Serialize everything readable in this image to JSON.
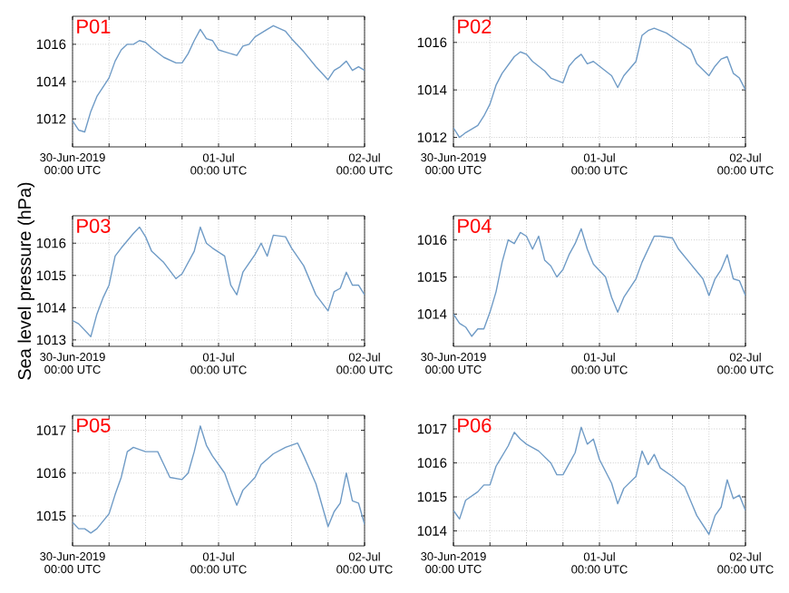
{
  "chart_data": [
    {
      "type": "line",
      "title": "P01",
      "color": "#6f9bc6",
      "grid": true,
      "xlim": [
        "2019-06-30T00:00",
        "2019-07-02T00:00"
      ],
      "ylim": [
        1010.5,
        1017.5
      ],
      "yticks": [
        1012,
        1014,
        1016
      ],
      "xticks": [
        {
          "value": "2019-06-30T00:00",
          "label": "30-Jun-2019\n00:00 UTC"
        },
        {
          "value": "2019-06-30T06:00",
          "label": null
        },
        {
          "value": "2019-06-30T12:00",
          "label": null
        },
        {
          "value": "2019-06-30T18:00",
          "label": null
        },
        {
          "value": "2019-07-01T00:00",
          "label": "01-Jul\n00:00 UTC"
        },
        {
          "value": "2019-07-01T06:00",
          "label": null
        },
        {
          "value": "2019-07-01T12:00",
          "label": null
        },
        {
          "value": "2019-07-01T18:00",
          "label": null
        },
        {
          "value": "2019-07-02T00:00",
          "label": "02-Jul\n00:00 UTC"
        }
      ],
      "x": [
        "2019-06-30T00:00",
        "2019-06-30T01:00",
        "2019-06-30T02:00",
        "2019-06-30T03:00",
        "2019-06-30T04:00",
        "2019-06-30T05:00",
        "2019-06-30T06:00",
        "2019-06-30T07:00",
        "2019-06-30T08:00",
        "2019-06-30T09:00",
        "2019-06-30T10:00",
        "2019-06-30T11:00",
        "2019-06-30T12:00",
        "2019-06-30T13:00",
        "2019-06-30T15:00",
        "2019-06-30T17:00",
        "2019-06-30T18:00",
        "2019-06-30T19:00",
        "2019-06-30T20:00",
        "2019-06-30T21:00",
        "2019-06-30T22:00",
        "2019-06-30T23:00",
        "2019-07-01T00:00",
        "2019-07-01T01:00",
        "2019-07-01T03:00",
        "2019-07-01T04:00",
        "2019-07-01T05:00",
        "2019-07-01T06:00",
        "2019-07-01T08:00",
        "2019-07-01T09:00",
        "2019-07-01T11:00",
        "2019-07-01T12:00",
        "2019-07-01T14:00",
        "2019-07-01T16:00",
        "2019-07-01T18:00",
        "2019-07-01T19:00",
        "2019-07-01T20:00",
        "2019-07-01T21:00",
        "2019-07-01T22:00",
        "2019-07-01T23:00",
        "2019-07-02T00:00"
      ],
      "values": [
        1011.9,
        1011.4,
        1011.3,
        1012.4,
        1013.2,
        1013.7,
        1014.2,
        1015.1,
        1015.7,
        1016.0,
        1016.0,
        1016.2,
        1016.1,
        1015.8,
        1015.3,
        1015.0,
        1015.0,
        1015.5,
        1016.2,
        1016.8,
        1016.3,
        1016.2,
        1015.7,
        1015.6,
        1015.4,
        1015.9,
        1016.0,
        1016.4,
        1016.8,
        1017.0,
        1016.7,
        1016.3,
        1015.6,
        1014.8,
        1014.1,
        1014.6,
        1014.8,
        1015.1,
        1014.6,
        1014.8,
        1014.6
      ]
    },
    {
      "type": "line",
      "title": "P02",
      "color": "#6f9bc6",
      "grid": true,
      "xlim": [
        "2019-06-30T00:00",
        "2019-07-02T00:00"
      ],
      "ylim": [
        1011.6,
        1017.1
      ],
      "yticks": [
        1012,
        1014,
        1016
      ],
      "xticks": [
        {
          "value": "2019-06-30T00:00",
          "label": "30-Jun-2019\n00:00 UTC"
        },
        {
          "value": "2019-06-30T06:00",
          "label": null
        },
        {
          "value": "2019-06-30T12:00",
          "label": null
        },
        {
          "value": "2019-06-30T18:00",
          "label": null
        },
        {
          "value": "2019-07-01T00:00",
          "label": "01-Jul\n00:00 UTC"
        },
        {
          "value": "2019-07-01T06:00",
          "label": null
        },
        {
          "value": "2019-07-01T12:00",
          "label": null
        },
        {
          "value": "2019-07-01T18:00",
          "label": null
        },
        {
          "value": "2019-07-02T00:00",
          "label": "02-Jul\n00:00 UTC"
        }
      ],
      "x": [
        "2019-06-30T00:00",
        "2019-06-30T01:00",
        "2019-06-30T02:00",
        "2019-06-30T04:00",
        "2019-06-30T05:00",
        "2019-06-30T06:00",
        "2019-06-30T07:00",
        "2019-06-30T08:00",
        "2019-06-30T10:00",
        "2019-06-30T11:00",
        "2019-06-30T12:00",
        "2019-06-30T13:00",
        "2019-06-30T15:00",
        "2019-06-30T16:00",
        "2019-06-30T18:00",
        "2019-06-30T19:00",
        "2019-06-30T20:00",
        "2019-06-30T21:00",
        "2019-06-30T22:00",
        "2019-06-30T23:00",
        "2019-07-01T01:00",
        "2019-07-01T02:00",
        "2019-07-01T03:00",
        "2019-07-01T04:00",
        "2019-07-01T06:00",
        "2019-07-01T07:00",
        "2019-07-01T08:00",
        "2019-07-01T09:00",
        "2019-07-01T11:00",
        "2019-07-01T13:00",
        "2019-07-01T15:00",
        "2019-07-01T16:00",
        "2019-07-01T18:00",
        "2019-07-01T19:00",
        "2019-07-01T20:00",
        "2019-07-01T21:00",
        "2019-07-01T22:00",
        "2019-07-01T23:00",
        "2019-07-02T00:00"
      ],
      "values": [
        1012.4,
        1012.0,
        1012.2,
        1012.5,
        1012.9,
        1013.4,
        1014.2,
        1014.7,
        1015.4,
        1015.6,
        1015.5,
        1015.2,
        1014.8,
        1014.5,
        1014.3,
        1015.0,
        1015.3,
        1015.5,
        1015.1,
        1015.2,
        1014.8,
        1014.6,
        1014.1,
        1014.6,
        1015.2,
        1016.3,
        1016.5,
        1016.6,
        1016.4,
        1016.05,
        1015.7,
        1015.1,
        1014.6,
        1015.0,
        1015.3,
        1015.4,
        1014.7,
        1014.5,
        1014.0
      ]
    },
    {
      "type": "line",
      "title": "P03",
      "ylabel": "Sea level pressure (hPa)",
      "color": "#6f9bc6",
      "grid": true,
      "xlim": [
        "2019-06-30T00:00",
        "2019-07-02T00:00"
      ],
      "ylim": [
        1012.8,
        1016.85
      ],
      "yticks": [
        1013,
        1014,
        1015,
        1016
      ],
      "xticks": [
        {
          "value": "2019-06-30T00:00",
          "label": "30-Jun-2019\n00:00 UTC"
        },
        {
          "value": "2019-06-30T06:00",
          "label": null
        },
        {
          "value": "2019-06-30T12:00",
          "label": null
        },
        {
          "value": "2019-06-30T18:00",
          "label": null
        },
        {
          "value": "2019-07-01T00:00",
          "label": "01-Jul\n00:00 UTC"
        },
        {
          "value": "2019-07-01T06:00",
          "label": null
        },
        {
          "value": "2019-07-01T12:00",
          "label": null
        },
        {
          "value": "2019-07-01T18:00",
          "label": null
        },
        {
          "value": "2019-07-02T00:00",
          "label": "02-Jul\n00:00 UTC"
        }
      ],
      "x": [
        "2019-06-30T00:00",
        "2019-06-30T01:00",
        "2019-06-30T03:00",
        "2019-06-30T04:00",
        "2019-06-30T05:00",
        "2019-06-30T06:00",
        "2019-06-30T07:00",
        "2019-06-30T08:00",
        "2019-06-30T10:00",
        "2019-06-30T11:00",
        "2019-06-30T12:00",
        "2019-06-30T13:00",
        "2019-06-30T15:00",
        "2019-06-30T17:00",
        "2019-06-30T18:00",
        "2019-06-30T20:00",
        "2019-06-30T21:00",
        "2019-06-30T22:00",
        "2019-06-30T23:00",
        "2019-07-01T01:00",
        "2019-07-01T02:00",
        "2019-07-01T03:00",
        "2019-07-01T04:00",
        "2019-07-01T06:00",
        "2019-07-01T07:00",
        "2019-07-01T08:00",
        "2019-07-01T09:00",
        "2019-07-01T11:00",
        "2019-07-01T12:00",
        "2019-07-01T14:00",
        "2019-07-01T16:00",
        "2019-07-01T18:00",
        "2019-07-01T19:00",
        "2019-07-01T20:00",
        "2019-07-01T21:00",
        "2019-07-01T22:00",
        "2019-07-01T23:00",
        "2019-07-02T00:00"
      ],
      "values": [
        1013.6,
        1013.5,
        1013.1,
        1013.8,
        1014.3,
        1014.7,
        1015.6,
        1015.85,
        1016.3,
        1016.5,
        1016.2,
        1015.75,
        1015.4,
        1014.9,
        1015.05,
        1015.75,
        1016.5,
        1016.0,
        1015.85,
        1015.6,
        1014.7,
        1014.4,
        1015.1,
        1015.65,
        1016.0,
        1015.6,
        1016.25,
        1016.2,
        1015.85,
        1015.3,
        1014.4,
        1013.9,
        1014.5,
        1014.6,
        1015.1,
        1014.7,
        1014.7,
        1014.4
      ]
    },
    {
      "type": "line",
      "title": "P04",
      "color": "#6f9bc6",
      "grid": true,
      "xlim": [
        "2019-06-30T00:00",
        "2019-07-02T00:00"
      ],
      "ylim": [
        1013.13,
        1016.65
      ],
      "yticks": [
        1014,
        1015,
        1016
      ],
      "xticks": [
        {
          "value": "2019-06-30T00:00",
          "label": "30-Jun-2019\n00:00 UTC"
        },
        {
          "value": "2019-06-30T06:00",
          "label": null
        },
        {
          "value": "2019-06-30T12:00",
          "label": null
        },
        {
          "value": "2019-06-30T18:00",
          "label": null
        },
        {
          "value": "2019-07-01T00:00",
          "label": "01-Jul\n00:00 UTC"
        },
        {
          "value": "2019-07-01T06:00",
          "label": null
        },
        {
          "value": "2019-07-01T12:00",
          "label": null
        },
        {
          "value": "2019-07-01T18:00",
          "label": null
        },
        {
          "value": "2019-07-02T00:00",
          "label": "02-Jul\n00:00 UTC"
        }
      ],
      "x": [
        "2019-06-30T00:00",
        "2019-06-30T01:00",
        "2019-06-30T02:00",
        "2019-06-30T03:00",
        "2019-06-30T04:00",
        "2019-06-30T05:00",
        "2019-06-30T06:00",
        "2019-06-30T07:00",
        "2019-06-30T08:00",
        "2019-06-30T09:00",
        "2019-06-30T10:00",
        "2019-06-30T11:00",
        "2019-06-30T12:00",
        "2019-06-30T13:00",
        "2019-06-30T14:00",
        "2019-06-30T15:00",
        "2019-06-30T16:00",
        "2019-06-30T17:00",
        "2019-06-30T18:00",
        "2019-06-30T19:00",
        "2019-06-30T20:00",
        "2019-06-30T21:00",
        "2019-06-30T22:00",
        "2019-06-30T23:00",
        "2019-07-01T01:00",
        "2019-07-01T02:00",
        "2019-07-01T03:00",
        "2019-07-01T04:00",
        "2019-07-01T06:00",
        "2019-07-01T07:00",
        "2019-07-01T09:00",
        "2019-07-01T10:00",
        "2019-07-01T12:00",
        "2019-07-01T13:00",
        "2019-07-01T15:00",
        "2019-07-01T17:00",
        "2019-07-01T18:00",
        "2019-07-01T19:00",
        "2019-07-01T20:00",
        "2019-07-01T21:00",
        "2019-07-01T22:00",
        "2019-07-01T23:00",
        "2019-07-02T00:00"
      ],
      "values": [
        1014.0,
        1013.75,
        1013.65,
        1013.4,
        1013.6,
        1013.6,
        1014.05,
        1014.6,
        1015.4,
        1016.0,
        1015.9,
        1016.2,
        1016.1,
        1015.75,
        1016.1,
        1015.45,
        1015.3,
        1015.0,
        1015.2,
        1015.6,
        1015.9,
        1016.3,
        1015.75,
        1015.35,
        1015.0,
        1014.45,
        1014.05,
        1014.45,
        1014.95,
        1015.4,
        1016.1,
        1016.1,
        1016.05,
        1015.75,
        1015.35,
        1014.95,
        1014.5,
        1014.95,
        1015.2,
        1015.6,
        1014.95,
        1014.9,
        1014.5
      ]
    },
    {
      "type": "line",
      "title": "P05",
      "color": "#6f9bc6",
      "grid": true,
      "xlim": [
        "2019-06-30T00:00",
        "2019-07-02T00:00"
      ],
      "ylim": [
        1014.3,
        1017.35
      ],
      "yticks": [
        1015,
        1016,
        1017
      ],
      "xticks": [
        {
          "value": "2019-06-30T00:00",
          "label": "30-Jun-2019\n00:00 UTC"
        },
        {
          "value": "2019-06-30T06:00",
          "label": null
        },
        {
          "value": "2019-06-30T12:00",
          "label": null
        },
        {
          "value": "2019-06-30T18:00",
          "label": null
        },
        {
          "value": "2019-07-01T00:00",
          "label": "01-Jul\n00:00 UTC"
        },
        {
          "value": "2019-07-01T06:00",
          "label": null
        },
        {
          "value": "2019-07-01T12:00",
          "label": null
        },
        {
          "value": "2019-07-01T18:00",
          "label": null
        },
        {
          "value": "2019-07-02T00:00",
          "label": "02-Jul\n00:00 UTC"
        }
      ],
      "x": [
        "2019-06-30T00:00",
        "2019-06-30T01:00",
        "2019-06-30T02:00",
        "2019-06-30T03:00",
        "2019-06-30T04:00",
        "2019-06-30T06:00",
        "2019-06-30T07:00",
        "2019-06-30T08:00",
        "2019-06-30T09:00",
        "2019-06-30T10:00",
        "2019-06-30T12:00",
        "2019-06-30T14:00",
        "2019-06-30T15:00",
        "2019-06-30T16:00",
        "2019-06-30T18:00",
        "2019-06-30T19:00",
        "2019-06-30T20:00",
        "2019-06-30T21:00",
        "2019-06-30T22:00",
        "2019-06-30T23:00",
        "2019-07-01T01:00",
        "2019-07-01T02:00",
        "2019-07-01T03:00",
        "2019-07-01T04:00",
        "2019-07-01T06:00",
        "2019-07-01T07:00",
        "2019-07-01T09:00",
        "2019-07-01T11:00",
        "2019-07-01T13:00",
        "2019-07-01T14:00",
        "2019-07-01T16:00",
        "2019-07-01T18:00",
        "2019-07-01T19:00",
        "2019-07-01T20:00",
        "2019-07-01T21:00",
        "2019-07-01T22:00",
        "2019-07-01T23:00",
        "2019-07-02T00:00"
      ],
      "values": [
        1014.85,
        1014.7,
        1014.7,
        1014.6,
        1014.7,
        1015.05,
        1015.5,
        1015.9,
        1016.5,
        1016.6,
        1016.5,
        1016.5,
        1016.2,
        1015.9,
        1015.85,
        1016.0,
        1016.5,
        1017.1,
        1016.65,
        1016.4,
        1016.0,
        1015.6,
        1015.25,
        1015.6,
        1015.9,
        1016.2,
        1016.45,
        1016.6,
        1016.7,
        1016.4,
        1015.75,
        1014.75,
        1015.1,
        1015.3,
        1016.0,
        1015.35,
        1015.3,
        1014.8
      ]
    },
    {
      "type": "line",
      "title": "P06",
      "color": "#6f9bc6",
      "grid": true,
      "xlim": [
        "2019-06-30T00:00",
        "2019-07-02T00:00"
      ],
      "ylim": [
        1013.56,
        1017.4
      ],
      "yticks": [
        1014,
        1015,
        1016,
        1017
      ],
      "xticks": [
        {
          "value": "2019-06-30T00:00",
          "label": "30-Jun-2019\n00:00 UTC"
        },
        {
          "value": "2019-06-30T06:00",
          "label": null
        },
        {
          "value": "2019-06-30T12:00",
          "label": null
        },
        {
          "value": "2019-06-30T18:00",
          "label": null
        },
        {
          "value": "2019-07-01T00:00",
          "label": "01-Jul\n00:00 UTC"
        },
        {
          "value": "2019-07-01T06:00",
          "label": null
        },
        {
          "value": "2019-07-01T12:00",
          "label": null
        },
        {
          "value": "2019-07-01T18:00",
          "label": null
        },
        {
          "value": "2019-07-02T00:00",
          "label": "02-Jul\n00:00 UTC"
        }
      ],
      "x": [
        "2019-06-30T00:00",
        "2019-06-30T01:00",
        "2019-06-30T02:00",
        "2019-06-30T04:00",
        "2019-06-30T05:00",
        "2019-06-30T06:00",
        "2019-06-30T07:00",
        "2019-06-30T08:00",
        "2019-06-30T09:00",
        "2019-06-30T10:00",
        "2019-06-30T11:00",
        "2019-06-30T12:00",
        "2019-06-30T14:00",
        "2019-06-30T16:00",
        "2019-06-30T17:00",
        "2019-06-30T18:00",
        "2019-06-30T20:00",
        "2019-06-30T21:00",
        "2019-06-30T22:00",
        "2019-06-30T23:00",
        "2019-07-01T00:00",
        "2019-07-01T02:00",
        "2019-07-01T03:00",
        "2019-07-01T04:00",
        "2019-07-01T06:00",
        "2019-07-01T07:00",
        "2019-07-01T08:00",
        "2019-07-01T09:00",
        "2019-07-01T10:00",
        "2019-07-01T12:00",
        "2019-07-01T14:00",
        "2019-07-01T16:00",
        "2019-07-01T18:00",
        "2019-07-01T19:00",
        "2019-07-01T20:00",
        "2019-07-01T21:00",
        "2019-07-01T22:00",
        "2019-07-01T23:00",
        "2019-07-02T00:00"
      ],
      "values": [
        1014.6,
        1014.35,
        1014.9,
        1015.15,
        1015.35,
        1015.35,
        1015.9,
        1016.2,
        1016.5,
        1016.9,
        1016.7,
        1016.55,
        1016.35,
        1016.0,
        1015.65,
        1015.65,
        1016.3,
        1017.05,
        1016.55,
        1016.7,
        1016.1,
        1015.4,
        1014.8,
        1015.25,
        1015.6,
        1016.35,
        1015.95,
        1016.25,
        1015.85,
        1015.6,
        1015.3,
        1014.45,
        1013.9,
        1014.45,
        1014.7,
        1015.5,
        1014.95,
        1015.05,
        1014.6
      ]
    }
  ]
}
